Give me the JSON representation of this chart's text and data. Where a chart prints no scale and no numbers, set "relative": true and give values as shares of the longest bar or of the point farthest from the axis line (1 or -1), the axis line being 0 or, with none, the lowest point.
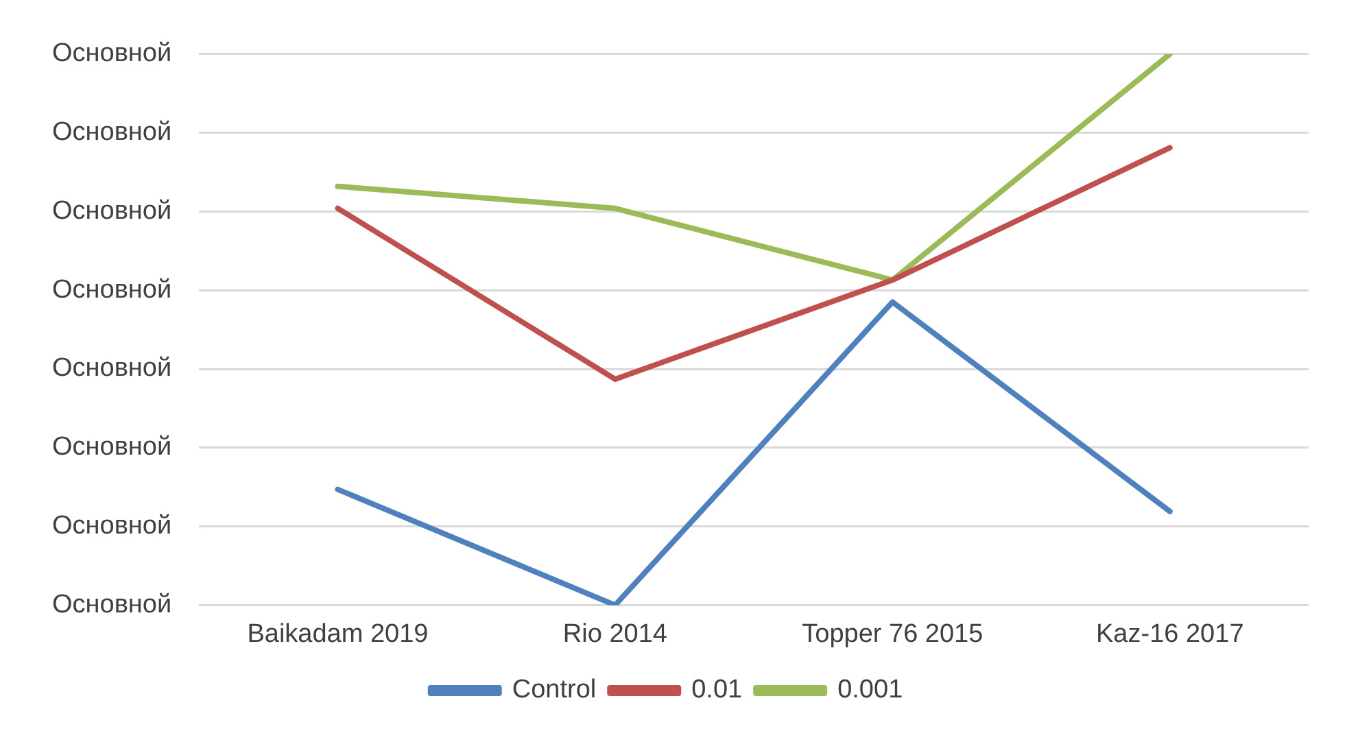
{
  "chart_data": {
    "type": "line",
    "relative": true,
    "categories": [
      "Baikadam 2019",
      "Rio 2014",
      "Topper 76 2015",
      "Kaz-16 2017"
    ],
    "series": [
      {
        "name": "Control",
        "color": "#4f81bd",
        "values": [
          0.21,
          0,
          0.55,
          0.17
        ]
      },
      {
        "name": "0.01",
        "color": "#c0504d",
        "values": [
          0.72,
          0.41,
          0.59,
          0.83
        ]
      },
      {
        "name": "0.001",
        "color": "#9bbb59",
        "values": [
          0.76,
          0.72,
          0.59,
          1
        ]
      }
    ],
    "annotations": [
      "Основной",
      "Основной",
      "Основной",
      "Основной",
      "Основной",
      "Основной",
      "Основной",
      "Основной"
    ],
    "grid": "y",
    "legend": "bottom",
    "marker": "none",
    "line_style": "solid"
  }
}
